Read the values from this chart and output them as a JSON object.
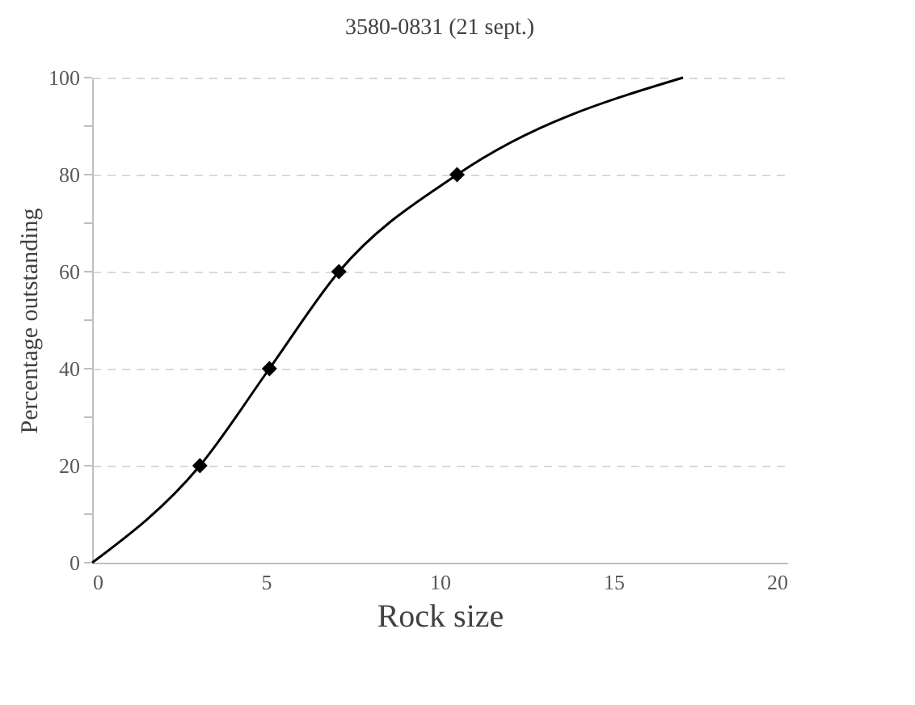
{
  "chart_data": {
    "type": "line",
    "title": "3580-0831 (21 sept.)",
    "xlabel": "Rock size",
    "ylabel": "Percentage outstanding",
    "series": [
      {
        "color": "#000000",
        "marker": "none",
        "x": [
          0,
          3.1,
          5.1,
          7.1,
          10.5,
          17
        ],
        "values": [
          0,
          20,
          40,
          60,
          80,
          100
        ]
      },
      {
        "type": "scatter",
        "color": "#000000",
        "marker": "diamond",
        "x": [
          3.1,
          5.1,
          7.1,
          10.5
        ],
        "values": [
          20,
          40,
          60,
          80
        ]
      }
    ],
    "xlim": [
      0,
      20
    ],
    "xticks": [
      0,
      5,
      10,
      15,
      20
    ],
    "ylim": [
      0,
      100
    ],
    "yticks": [
      0,
      {
        "value": 10,
        "label": null
      },
      20,
      {
        "value": 30,
        "label": null
      },
      40,
      {
        "value": 50,
        "label": null
      },
      60,
      {
        "value": 70,
        "label": null
      },
      80,
      {
        "value": 90,
        "label": null
      },
      100
    ],
    "grid": "y"
  }
}
